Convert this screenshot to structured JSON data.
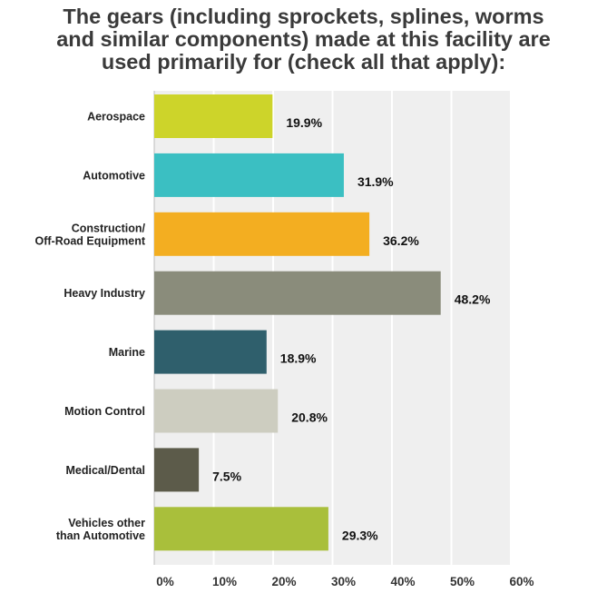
{
  "chart_data": {
    "type": "bar",
    "orientation": "horizontal",
    "title_lines": [
      "The gears (including sprockets, splines, worms",
      "and similar components) made at this facility are",
      "used primarily for (check all that apply):"
    ],
    "categories": [
      [
        "Aerospace"
      ],
      [
        "Automotive"
      ],
      [
        "Construction/",
        "Off-Road Equipment"
      ],
      [
        "Heavy Industry"
      ],
      [
        "Marine"
      ],
      [
        "Motion Control"
      ],
      [
        "Medical/Dental"
      ],
      [
        "Vehicles other",
        "than Automotive"
      ]
    ],
    "values": [
      19.9,
      31.9,
      36.2,
      48.2,
      18.9,
      20.8,
      7.5,
      29.3
    ],
    "value_labels": [
      "19.9%",
      "31.9%",
      "36.2%",
      "48.2%",
      "18.9%",
      "20.8%",
      "7.5%",
      "29.3%"
    ],
    "colors": [
      "#cdd42a",
      "#3bbfc2",
      "#f3ae21",
      "#8a8c7b",
      "#2f5f6c",
      "#cdcdc0",
      "#5c5b4a",
      "#a9bf3b"
    ],
    "xlim": [
      0,
      60
    ],
    "xticks": [
      0,
      10,
      20,
      30,
      40,
      50,
      60
    ],
    "xtick_labels": [
      "0%",
      "10%",
      "20%",
      "30%",
      "40%",
      "50%",
      "60%"
    ],
    "grid": true,
    "plot_background": "#efefef",
    "gridline_color": "#ffffff"
  }
}
